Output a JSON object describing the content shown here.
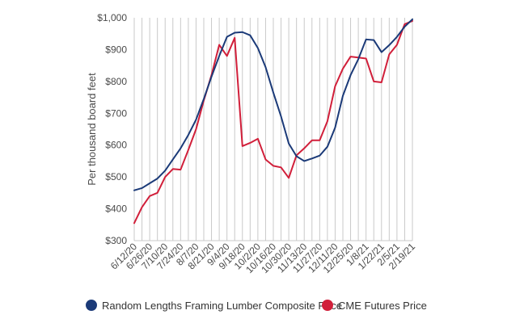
{
  "chart_data": {
    "type": "line",
    "title": "",
    "xlabel": "",
    "ylabel": "Per thousand board feet",
    "ylim": [
      300,
      1000
    ],
    "yticks": [
      {
        "value": 1000,
        "label": "$1,000"
      },
      {
        "value": 900,
        "label": "$900"
      },
      {
        "value": 800,
        "label": "$800"
      },
      {
        "value": 700,
        "label": "$700"
      },
      {
        "value": 600,
        "label": "$600"
      },
      {
        "value": 500,
        "label": "$500"
      },
      {
        "value": 400,
        "label": "$400"
      },
      {
        "value": 300,
        "label": "$300"
      }
    ],
    "x_count": 37,
    "x_tick_indices": [
      0,
      2,
      4,
      6,
      8,
      10,
      12,
      14,
      16,
      18,
      20,
      22,
      24,
      26,
      28,
      30,
      32,
      34,
      36
    ],
    "x_tick_labels": [
      "6/12/20",
      "6/26/20",
      "7/10/20",
      "7/24/20",
      "8/7/20",
      "8/21/20",
      "9/4/20",
      "9/18/20",
      "10/2/20",
      "10/16/20",
      "10/30/20",
      "11/13/20",
      "11/27/20",
      "12/11/20",
      "12/25/20",
      "1/8/21",
      "1/22/21",
      "2/5/21",
      "2/19/21"
    ],
    "grid": "vertical",
    "series": [
      {
        "name": "Random Lengths Framing Lumber Composite Price",
        "color": "#1b3a78",
        "values": [
          458,
          465,
          480,
          495,
          520,
          555,
          590,
          632,
          680,
          745,
          815,
          880,
          940,
          953,
          955,
          945,
          905,
          845,
          765,
          690,
          605,
          565,
          550,
          558,
          567,
          595,
          655,
          755,
          820,
          870,
          932,
          930,
          892,
          914,
          940,
          972,
          995
        ]
      },
      {
        "name": "CME Futures Price",
        "color": "#d11f3a",
        "values": [
          355,
          405,
          440,
          450,
          500,
          525,
          523,
          585,
          650,
          740,
          820,
          915,
          880,
          937,
          597,
          607,
          620,
          555,
          535,
          530,
          497,
          568,
          590,
          615,
          615,
          675,
          785,
          840,
          878,
          875,
          872,
          800,
          797,
          885,
          915,
          980,
          990
        ]
      }
    ],
    "legend_position": "bottom"
  }
}
